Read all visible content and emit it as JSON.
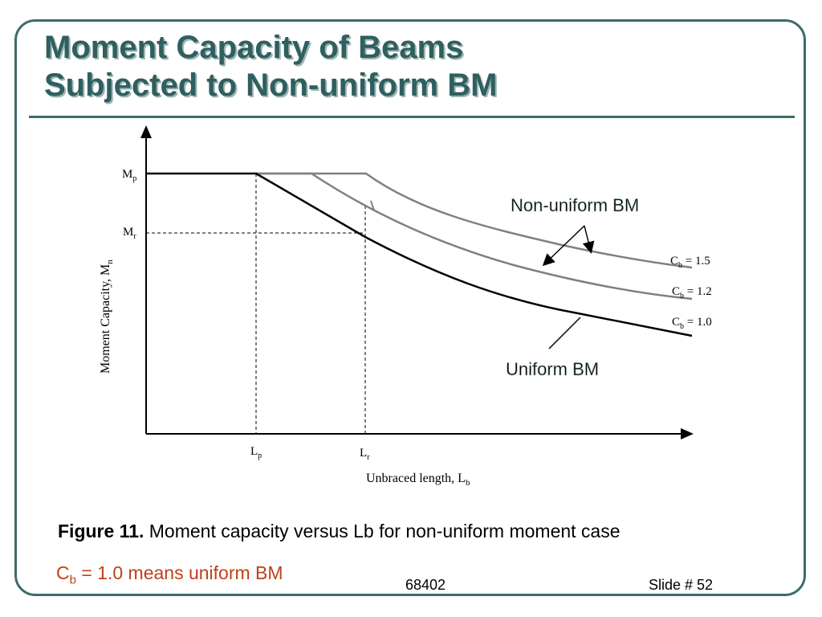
{
  "slide": {
    "title_line1": "Moment Capacity of Beams",
    "title_line2": "Subjected to Non-uniform BM",
    "caption_label": "Figure 11.",
    "caption_text": " Moment capacity versus Lb for non-uniform moment case",
    "note_c": "C",
    "note_sub": "b",
    "note_text": " = 1.0 means uniform BM",
    "footer_number": "68402",
    "footer_slide": "Slide # 52"
  },
  "diagram": {
    "y_axis_main": "Moment Capacity, M",
    "y_axis_sub": "n",
    "x_axis_main": "Unbraced length, L",
    "x_axis_sub": "b",
    "mp_main": "M",
    "mp_sub": "p",
    "mr_main": "M",
    "mr_sub": "r",
    "lp_main": "L",
    "lp_sub": "p",
    "lr_main": "L",
    "lr_sub": "r",
    "curve_labels": [
      {
        "c": "C",
        "sub": "b",
        "value": " = 1.5"
      },
      {
        "c": "C",
        "sub": "b",
        "value": " = 1.2"
      },
      {
        "c": "C",
        "sub": "b",
        "value": " = 1.0"
      }
    ],
    "annotation_nonuniform": "Non-uniform BM",
    "annotation_uniform": "Uniform BM"
  },
  "colors": {
    "accent": "#3d6b6b",
    "title": "#2f5f5f",
    "note": "#c0401a",
    "curve_gray": "#808080"
  }
}
